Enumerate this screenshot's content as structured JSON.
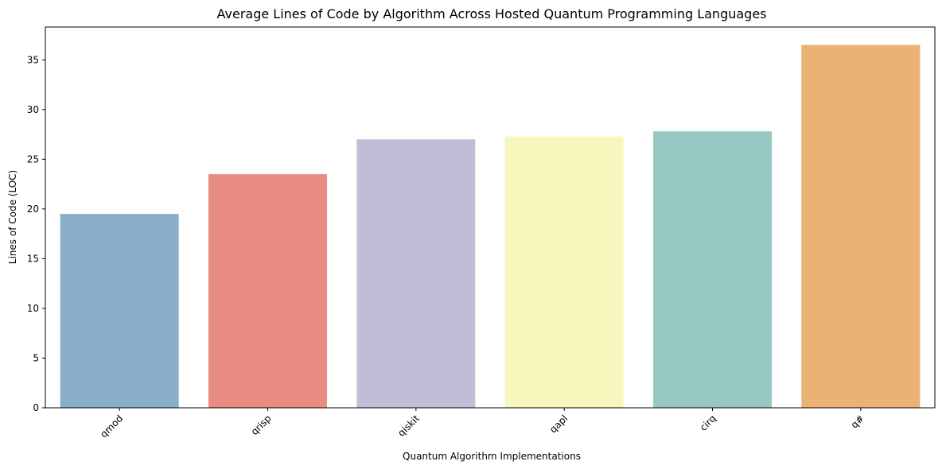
{
  "chart_data": {
    "type": "bar",
    "title": "Average Lines of Code by Algorithm Across Hosted Quantum Programming Languages",
    "xlabel": "Quantum Algorithm Implementations",
    "ylabel": "Lines of Code (LOC)",
    "categories": [
      "qmod",
      "qrisp",
      "qiskit",
      "qapl",
      "cirq",
      "q#"
    ],
    "values": [
      19.5,
      23.5,
      27.0,
      27.3,
      27.8,
      36.5
    ],
    "colors": [
      "#8aafc9",
      "#e98c82",
      "#c1bdd6",
      "#f7f6bd",
      "#97c8c1",
      "#eab275"
    ],
    "ylim": [
      0,
      38.3
    ],
    "yticks": [
      0,
      5,
      10,
      15,
      20,
      25,
      30,
      35
    ],
    "xtick_rotation": 45,
    "grid": false
  }
}
